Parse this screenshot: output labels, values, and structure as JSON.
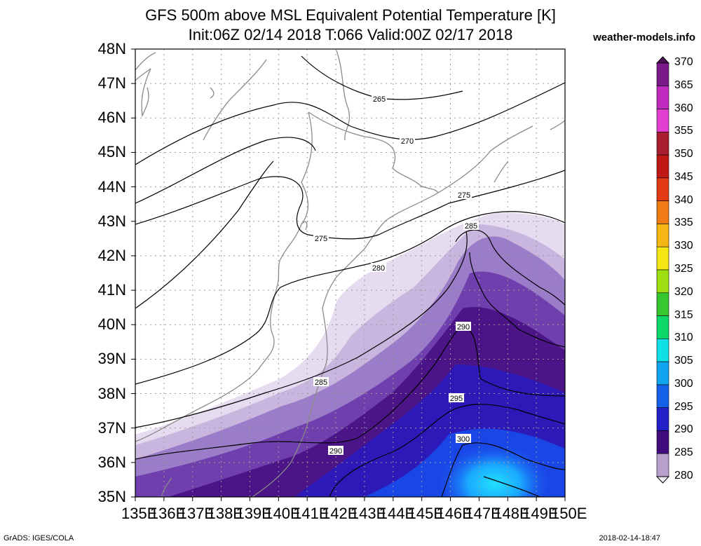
{
  "title": {
    "line1": "GFS 500m above MSL Equivalent Potential Temperature [K]",
    "line2": "Init:06Z 02/14 2018 T:066 Valid:00Z 02/17 2018"
  },
  "site": "weather-models.info",
  "footer": {
    "left": "GrADS: IGES/COLA",
    "right": "2018-02-14-18:47"
  },
  "map": {
    "lat_labels": [
      "48N",
      "47N",
      "46N",
      "45N",
      "44N",
      "43N",
      "42N",
      "41N",
      "40N",
      "39N",
      "38N",
      "37N",
      "36N",
      "35N"
    ],
    "lon_labels": [
      "135E",
      "136E",
      "137E",
      "138E",
      "139E",
      "140E",
      "141E",
      "142E",
      "143E",
      "144E",
      "145E",
      "146E",
      "147E",
      "148E",
      "149E",
      "150E"
    ],
    "lat_range": [
      35,
      48
    ],
    "lon_range": [
      135,
      150
    ],
    "grid": true,
    "contour_labels": [
      "265",
      "270",
      "275",
      "275",
      "280",
      "285",
      "285",
      "290",
      "290",
      "295",
      "300"
    ]
  },
  "colorbar": {
    "labels": [
      "370",
      "365",
      "360",
      "355",
      "350",
      "345",
      "340",
      "335",
      "330",
      "325",
      "320",
      "315",
      "310",
      "305",
      "300",
      "295",
      "290",
      "285",
      "280"
    ],
    "colors": [
      "#4a0f55",
      "#7a1a8a",
      "#c02bc0",
      "#e23fd0",
      "#a81d2f",
      "#c01717",
      "#e23a12",
      "#f07a14",
      "#f4b614",
      "#f4e614",
      "#9fe014",
      "#37c830",
      "#0ed868",
      "#0ee0e6",
      "#10a5ee",
      "#1560e8",
      "#2320c8",
      "#3f0b7d",
      "#b8a0cc",
      "#f0eaf5"
    ]
  }
}
